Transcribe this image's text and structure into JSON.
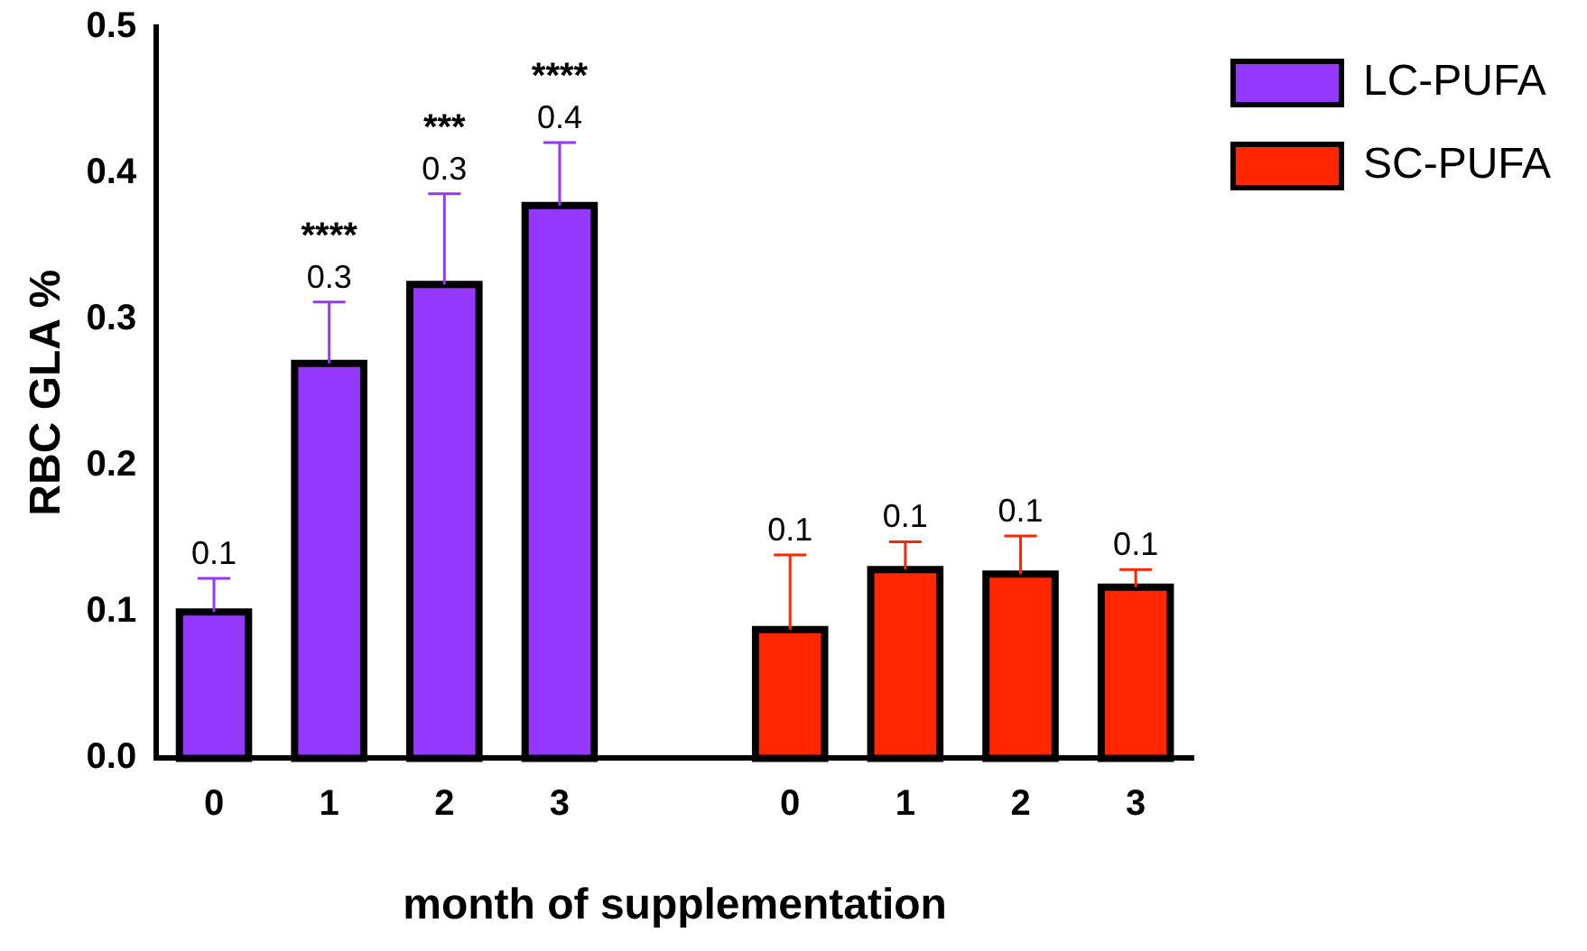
{
  "chart_data": {
    "type": "bar",
    "xlabel": "month of supplementation",
    "ylabel": "RBC GLA %",
    "categories": [
      "0",
      "1",
      "2",
      "3",
      null,
      "0",
      "1",
      "2",
      "3"
    ],
    "series": [
      {
        "name": "LC-PUFA",
        "color": "#9437ff",
        "values": [
          0.1,
          0.27,
          0.324,
          0.378,
          null,
          null,
          null,
          null,
          null
        ],
        "errors": [
          [
            0.1,
            0.123
          ],
          [
            0.27,
            0.312
          ],
          [
            0.324,
            0.386
          ],
          [
            0.378,
            0.421
          ],
          null,
          null,
          null,
          null,
          null
        ],
        "value_labels": [
          "0.1",
          "0.3",
          "0.3",
          "0.4",
          null,
          null,
          null,
          null,
          null
        ]
      },
      {
        "name": "SC-PUFA",
        "color": "#ff2600",
        "values": [
          null,
          null,
          null,
          null,
          null,
          0.088,
          0.129,
          0.126,
          0.117
        ],
        "errors": [
          null,
          null,
          null,
          null,
          null,
          [
            0.088,
            0.139
          ],
          [
            0.129,
            0.148
          ],
          [
            0.126,
            0.152
          ],
          [
            0.117,
            0.129
          ]
        ],
        "value_labels": [
          null,
          null,
          null,
          null,
          null,
          "0.1",
          "0.1",
          "0.1",
          "0.1"
        ]
      }
    ],
    "annotations": [
      {
        "text": "****",
        "x": "1",
        "y": 0.312
      },
      {
        "text": "***",
        "x": "2",
        "y": 0.386
      },
      {
        "text": "****",
        "x": "3",
        "y": 0.421
      }
    ],
    "ylim": [
      0,
      0.5
    ],
    "yticks": [
      {
        "value": 0,
        "label": "0.0"
      },
      0.1,
      0.2,
      0.3,
      0.4,
      0.5
    ],
    "grid": false,
    "legend": "top right"
  }
}
